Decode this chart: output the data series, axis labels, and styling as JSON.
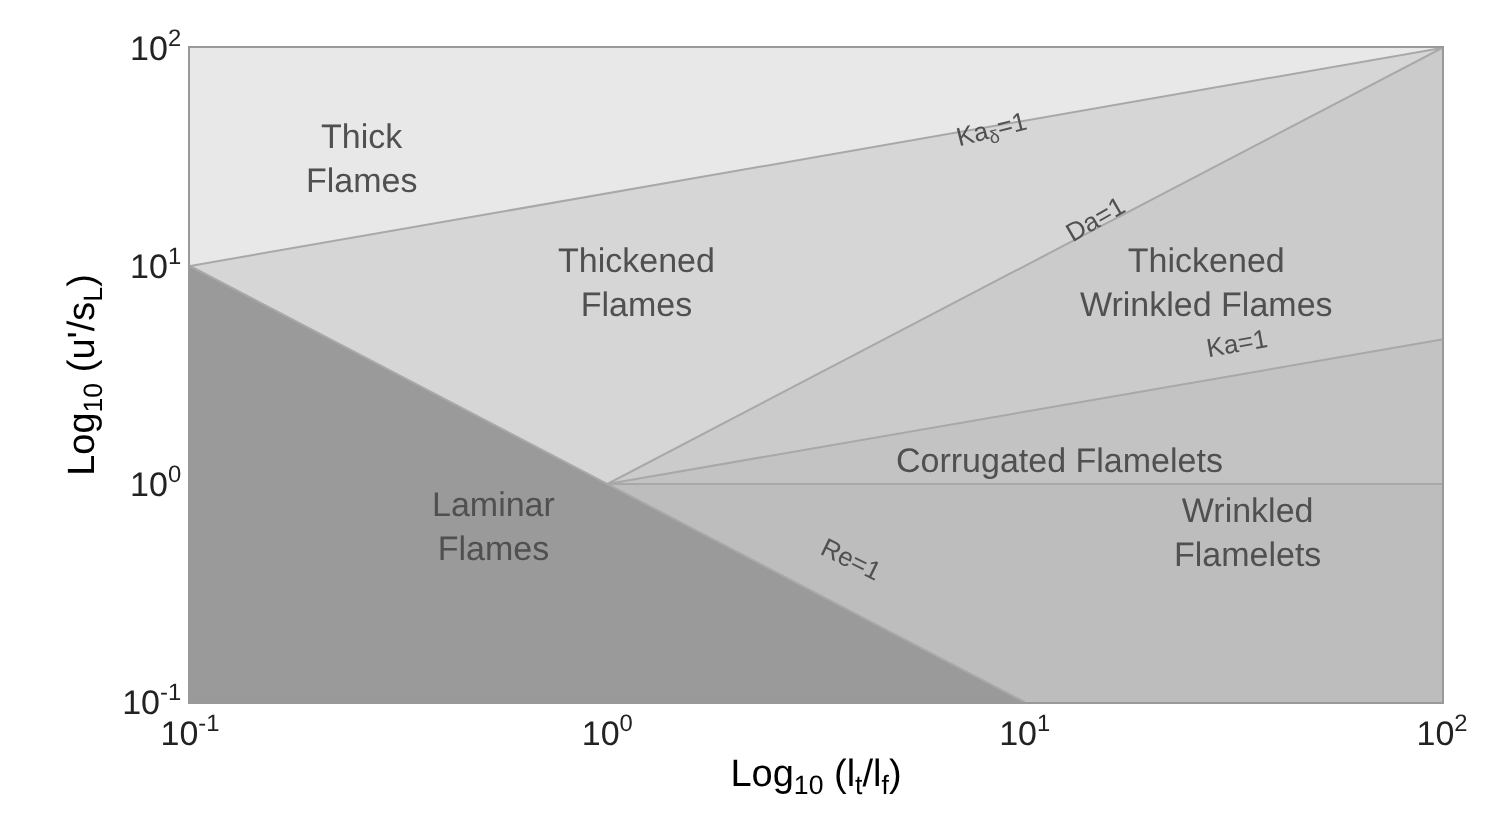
{
  "chart_data": {
    "type": "area",
    "xlabel": "Log$_{10}$ (l$_{t}$/l$_{f}$)",
    "ylabel": "Log$_{10}$ (u'/s$_{L}$)",
    "log": "xy",
    "xlim": [
      0.1,
      100
    ],
    "ylim": [
      0.1,
      100
    ],
    "xticks": [
      {
        "value": 0.1,
        "label": "10$^{-1}$"
      },
      {
        "value": 1,
        "label": "10$^{0}$"
      },
      {
        "value": 10,
        "label": "10$^{1}$"
      },
      {
        "value": 100,
        "label": "10$^{2}$"
      }
    ],
    "yticks": [
      {
        "value": 0.1,
        "label": "10$^{-1}$"
      },
      {
        "value": 1,
        "label": "10$^{0}$"
      },
      {
        "value": 10,
        "label": "10$^{1}$"
      },
      {
        "value": 100,
        "label": "10$^{2}$"
      }
    ],
    "grid": false,
    "series": [
      {
        "color": "#d6d6d6",
        "x": [
          0.1,
          100
        ],
        "values": [
          10,
          100
        ]
      },
      {
        "color": "#cbcbcb",
        "x": [
          1,
          100
        ],
        "values": [
          1,
          100
        ]
      },
      {
        "color": "#c3c3c3",
        "x": [
          1,
          100
        ],
        "values": [
          1,
          4.6
        ]
      },
      {
        "color": "#bdbdbd",
        "x": [
          1,
          100
        ],
        "values": [
          1,
          1
        ]
      },
      {
        "color": "#9a9a9a",
        "x": [
          0.1,
          10
        ],
        "values": [
          10,
          0.1
        ]
      }
    ],
    "annotations": [
      "Thick Flames",
      "Thickened Flames",
      "Thickened Wrinkled Flames",
      "Corrugated Flamelets",
      "Wrinkled Flamelets",
      "Laminar Flames",
      "Ka$_{δ}$=1",
      "Da=1",
      "Ka=1",
      "Re=1"
    ]
  }
}
